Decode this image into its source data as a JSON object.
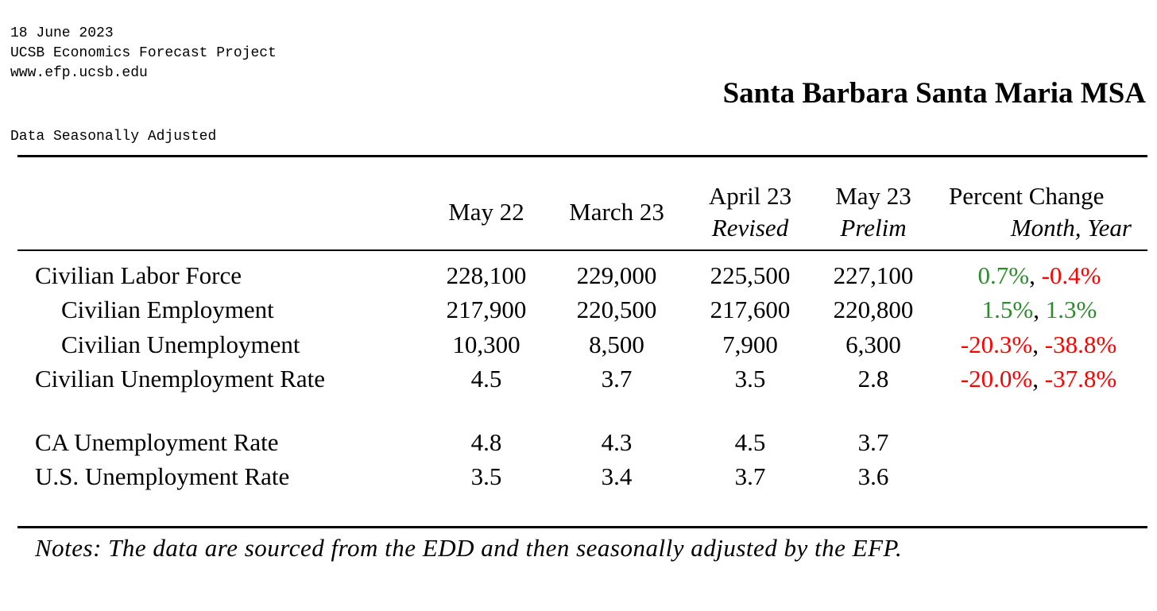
{
  "header": {
    "date": "18 June 2023",
    "organization": "UCSB Economics Forecast Project",
    "website": "www.efp.ucsb.edu",
    "region_title": "Santa Barbara Santa Maria MSA",
    "subtitle": "Data Seasonally Adjusted"
  },
  "table": {
    "columns": [
      {
        "line1": "May 22",
        "line2": ""
      },
      {
        "line1": "March 23",
        "line2": ""
      },
      {
        "line1": "April 23",
        "line2": "Revised"
      },
      {
        "line1": "May 23",
        "line2": "Prelim"
      }
    ],
    "change_header": {
      "line1": "Percent Change",
      "line2": "Month, Year"
    },
    "rows": [
      {
        "label": "Civilian Labor Force",
        "values": [
          "228,100",
          "229,000",
          "225,500",
          "227,100"
        ],
        "month_change": "0.7%",
        "year_change": "-0.4%"
      },
      {
        "label": "Civilian Employment",
        "values": [
          "217,900",
          "220,500",
          "217,600",
          "220,800"
        ],
        "month_change": "1.5%",
        "year_change": "1.3%"
      },
      {
        "label": "Civilian Unemployment",
        "values": [
          "10,300",
          "8,500",
          "7,900",
          "6,300"
        ],
        "month_change": "-20.3%",
        "year_change": "-38.8%"
      },
      {
        "label": "Civilian Unemployment Rate",
        "values": [
          "4.5",
          "3.7",
          "3.5",
          "2.8"
        ],
        "month_change": "-20.0%",
        "year_change": "-37.8%"
      },
      {
        "label": "CA Unemployment Rate",
        "values": [
          "4.8",
          "4.3",
          "4.5",
          "3.7"
        ],
        "month_change": "",
        "year_change": ""
      },
      {
        "label": "U.S. Unemployment Rate",
        "values": [
          "3.5",
          "3.4",
          "3.7",
          "3.6"
        ],
        "month_change": "",
        "year_change": ""
      }
    ],
    "change_separator": ", ",
    "colors": {
      "positive": "#2e8b2e",
      "negative": "#ff0000"
    }
  },
  "notes": "Notes: The data are sourced from the EDD and then seasonally adjusted by the EFP."
}
